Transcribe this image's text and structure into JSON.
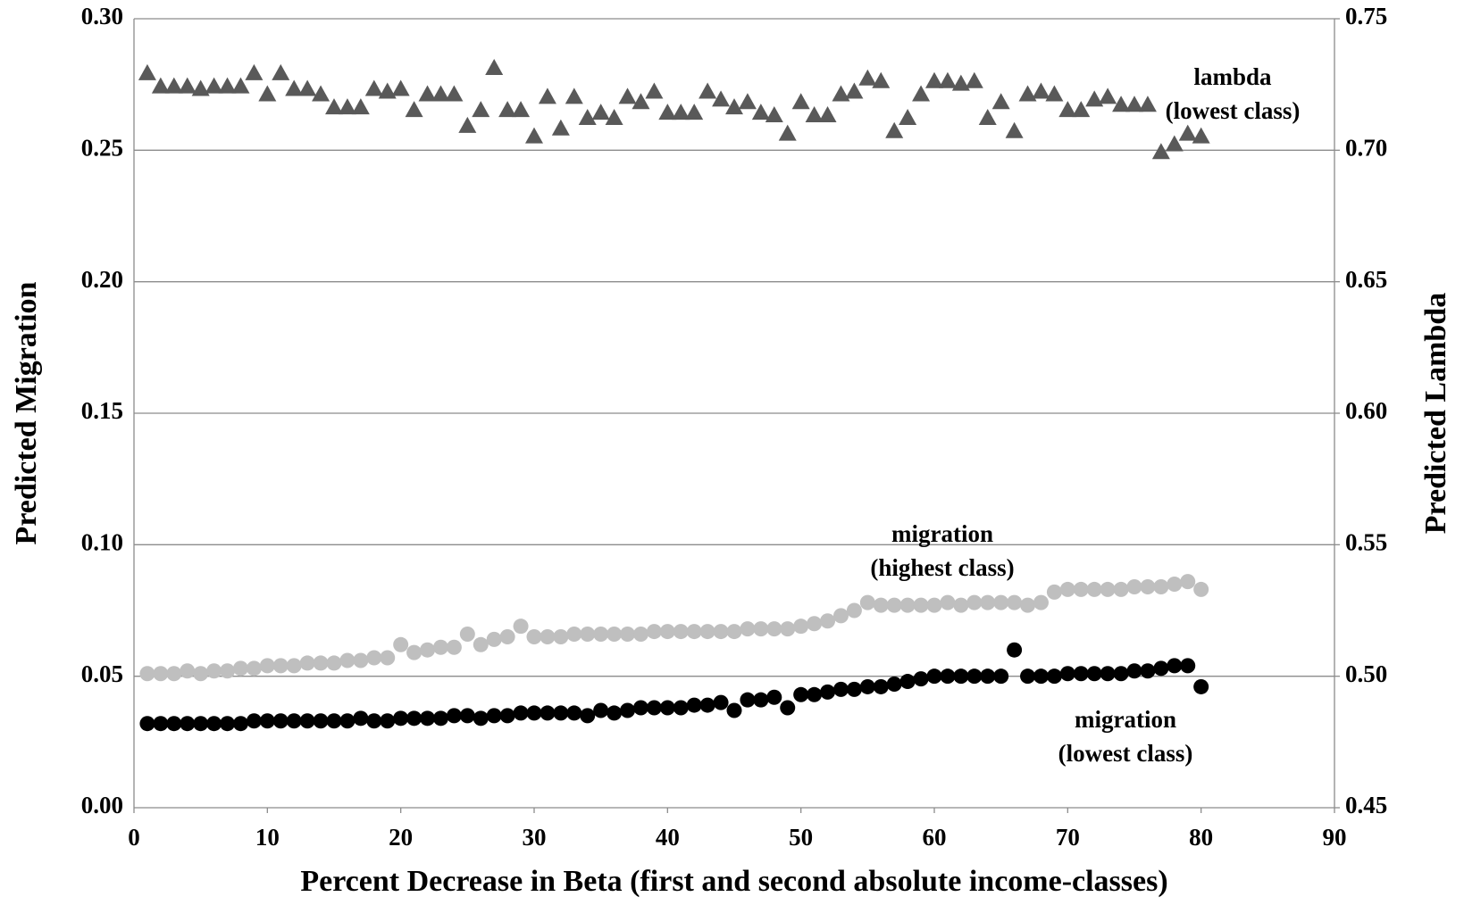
{
  "chart_data": {
    "type": "scatter",
    "xlabel": "Percent Decrease in Beta (first and second absolute income-classes)",
    "ylabel": "Predicted Migration",
    "y2label": "Predicted Lambda",
    "xlim": [
      0,
      90
    ],
    "xticks": [
      0,
      10,
      20,
      30,
      40,
      50,
      60,
      70,
      80,
      90
    ],
    "ylim": [
      0,
      0.3
    ],
    "yticks": [
      {
        "value": 0,
        "label": "0.00"
      },
      0.05,
      {
        "value": 0.1,
        "label": "0.10"
      },
      0.15,
      {
        "value": 0.2,
        "label": "0.20"
      },
      0.25,
      {
        "value": 0.3,
        "label": "0.30"
      }
    ],
    "y2lim": [
      0.45,
      0.75
    ],
    "y2ticks": [
      0.45,
      {
        "value": 0.5,
        "label": "0.50"
      },
      0.55,
      {
        "value": 0.6,
        "label": "0.60"
      },
      0.65,
      {
        "value": 0.7,
        "label": "0.70"
      },
      0.75
    ],
    "grid": true,
    "x": [
      1,
      2,
      3,
      4,
      5,
      6,
      7,
      8,
      9,
      10,
      11,
      12,
      13,
      14,
      15,
      16,
      17,
      18,
      19,
      20,
      21,
      22,
      23,
      24,
      25,
      26,
      27,
      28,
      29,
      30,
      31,
      32,
      33,
      34,
      35,
      36,
      37,
      38,
      39,
      40,
      41,
      42,
      43,
      44,
      45,
      46,
      47,
      48,
      49,
      50,
      51,
      52,
      53,
      54,
      55,
      56,
      57,
      58,
      59,
      60,
      61,
      62,
      63,
      64,
      65,
      66,
      67,
      68,
      69,
      70,
      71,
      72,
      73,
      74,
      75,
      76,
      77,
      78,
      79,
      80
    ],
    "series": [
      {
        "name": "migration (highest class)",
        "color": "#bfbfbf",
        "marker": "circle",
        "values": [
          0.051,
          0.051,
          0.051,
          0.052,
          0.051,
          0.052,
          0.052,
          0.053,
          0.053,
          0.054,
          0.054,
          0.054,
          0.055,
          0.055,
          0.055,
          0.056,
          0.056,
          0.057,
          0.057,
          0.062,
          0.059,
          0.06,
          0.061,
          0.061,
          0.066,
          0.062,
          0.064,
          0.065,
          0.069,
          0.065,
          0.065,
          0.065,
          0.066,
          0.066,
          0.066,
          0.066,
          0.066,
          0.066,
          0.067,
          0.067,
          0.067,
          0.067,
          0.067,
          0.067,
          0.067,
          0.068,
          0.068,
          0.068,
          0.068,
          0.069,
          0.07,
          0.071,
          0.073,
          0.075,
          0.078,
          0.077,
          0.077,
          0.077,
          0.077,
          0.077,
          0.078,
          0.077,
          0.078,
          0.078,
          0.078,
          0.078,
          0.077,
          0.078,
          0.082,
          0.083,
          0.083,
          0.083,
          0.083,
          0.083,
          0.084,
          0.084,
          0.084,
          0.085,
          0.086,
          0.083
        ]
      },
      {
        "name": "migration (lowest class)",
        "color": "#000000",
        "marker": "circle",
        "values": [
          0.032,
          0.032,
          0.032,
          0.032,
          0.032,
          0.032,
          0.032,
          0.032,
          0.033,
          0.033,
          0.033,
          0.033,
          0.033,
          0.033,
          0.033,
          0.033,
          0.034,
          0.033,
          0.033,
          0.034,
          0.034,
          0.034,
          0.034,
          0.035,
          0.035,
          0.034,
          0.035,
          0.035,
          0.036,
          0.036,
          0.036,
          0.036,
          0.036,
          0.035,
          0.037,
          0.036,
          0.037,
          0.038,
          0.038,
          0.038,
          0.038,
          0.039,
          0.039,
          0.04,
          0.037,
          0.041,
          0.041,
          0.042,
          0.038,
          0.043,
          0.043,
          0.044,
          0.045,
          0.045,
          0.046,
          0.046,
          0.047,
          0.048,
          0.049,
          0.05,
          0.05,
          0.05,
          0.05,
          0.05,
          0.05,
          0.06,
          0.05,
          0.05,
          0.05,
          0.051,
          0.051,
          0.051,
          0.051,
          0.051,
          0.052,
          0.052,
          0.053,
          0.054,
          0.054,
          0.046
        ]
      },
      {
        "name": "lambda (lowest class)",
        "color": "#595959",
        "marker": "triangle",
        "axis": "y2",
        "values": [
          0.729,
          0.724,
          0.724,
          0.724,
          0.723,
          0.724,
          0.724,
          0.724,
          0.729,
          0.721,
          0.729,
          0.723,
          0.723,
          0.721,
          0.716,
          0.716,
          0.716,
          0.723,
          0.722,
          0.723,
          0.715,
          0.721,
          0.721,
          0.721,
          0.709,
          0.715,
          0.731,
          0.715,
          0.715,
          0.705,
          0.72,
          0.708,
          0.72,
          0.712,
          0.714,
          0.712,
          0.72,
          0.718,
          0.722,
          0.714,
          0.714,
          0.714,
          0.722,
          0.719,
          0.716,
          0.718,
          0.714,
          0.713,
          0.706,
          0.718,
          0.713,
          0.713,
          0.721,
          0.722,
          0.727,
          0.726,
          0.707,
          0.712,
          0.721,
          0.726,
          0.726,
          0.725,
          0.726,
          0.712,
          0.718,
          0.707,
          0.721,
          0.722,
          0.721,
          0.715,
          0.715,
          0.719,
          0.72,
          0.717,
          0.717,
          0.717,
          0.699,
          0.702,
          0.706,
          0.705
        ]
      }
    ],
    "annotations": [
      [
        "lambda",
        "(lowest class)"
      ],
      [
        "migration",
        "(highest class)"
      ],
      [
        "migration",
        "(lowest class)"
      ]
    ]
  }
}
